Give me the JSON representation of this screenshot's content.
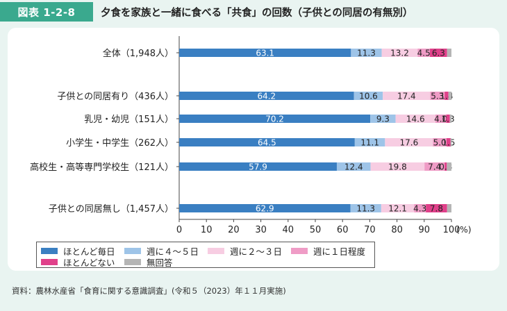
{
  "figure": {
    "number": "図表 1-2-8",
    "title": "夕食を家族と一緒に食べる「共食」の回数（子供との同居の有無別）",
    "source": "資料：農林水産省「食育に関する意識調査」(令和５（2023）年１１月実施)"
  },
  "chart_data": {
    "type": "bar",
    "orientation": "horizontal",
    "stacked": true,
    "categories": [
      "全体（1,948人）",
      "子供との同居有り（436人）",
      "乳児・幼児（151人）",
      "小学生・中学生（262人）",
      "高校生・高等専門学校生（121人）",
      "子供との同居無し（1,457人）"
    ],
    "series": [
      {
        "name": "ほとんど毎日",
        "color": "#3a7fc2",
        "values": [
          63.1,
          64.2,
          70.2,
          64.5,
          57.9,
          62.9
        ]
      },
      {
        "name": "週に４～５日",
        "color": "#9ec4e8",
        "values": [
          11.3,
          10.6,
          9.3,
          11.1,
          12.4,
          11.3
        ]
      },
      {
        "name": "週に２～３日",
        "color": "#f7cde2",
        "values": [
          13.2,
          17.4,
          14.6,
          17.6,
          19.8,
          12.1
        ]
      },
      {
        "name": "週に１日程度",
        "color": "#ef9cc6",
        "values": [
          4.5,
          5.3,
          4.0,
          5.0,
          7.4,
          4.3
        ]
      },
      {
        "name": "ほとんどない",
        "color": "#e0408a",
        "values": [
          6.3,
          1.4,
          1.3,
          1.5,
          0.8,
          7.8
        ]
      },
      {
        "name": "無回答",
        "color": "#b5b5b5",
        "values": [
          1.6,
          1.1,
          0.6,
          0.3,
          1.7,
          1.6
        ]
      }
    ],
    "value_labels": [
      [
        "63.1",
        "11.3",
        "13.2",
        "4.5",
        "6.3",
        ""
      ],
      [
        "64.2",
        "10.6",
        "17.4",
        "5.3",
        "1.4",
        ""
      ],
      [
        "70.2",
        "9.3",
        "14.6",
        "4.0",
        "1.3",
        ""
      ],
      [
        "64.5",
        "11.1",
        "17.6",
        "5.0",
        "1.5",
        ""
      ],
      [
        "57.9",
        "12.4",
        "19.8",
        "7.4",
        "0.8",
        ""
      ],
      [
        "62.9",
        "11.3",
        "12.1",
        "4.3",
        "7.8",
        ""
      ]
    ],
    "x_ticks": [
      "0",
      "10",
      "20",
      "30",
      "40",
      "50",
      "60",
      "70",
      "80",
      "90",
      "100"
    ],
    "x_unit": "(%)",
    "xlim": [
      0,
      100
    ],
    "grid": false,
    "legend_position": "bottom-left"
  }
}
